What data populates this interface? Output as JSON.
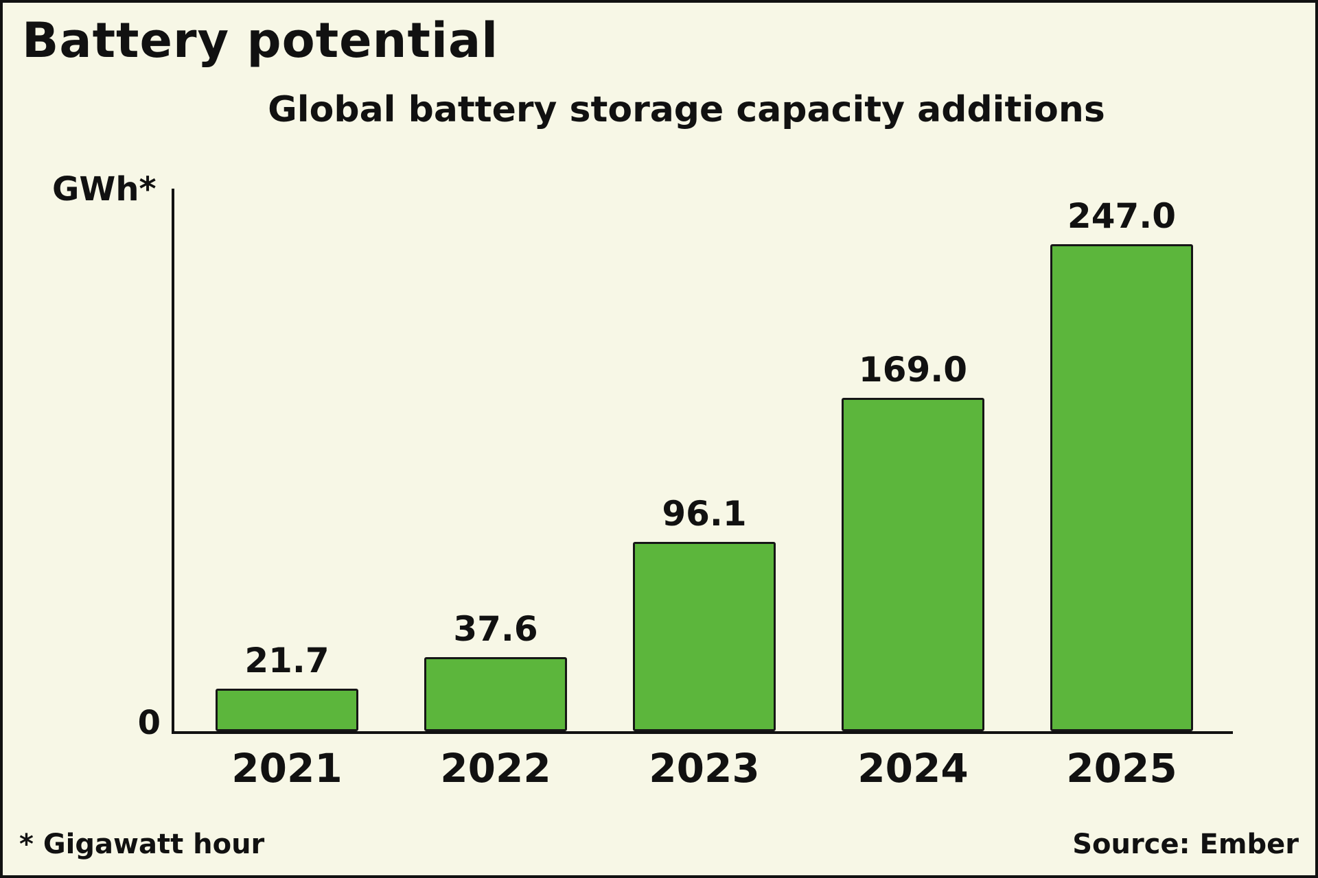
{
  "footnote": "* Gigawatt hour",
  "source": "Source: Ember",
  "colors": {
    "background": "#f7f7e6",
    "bar": "#5cb63c",
    "bar_stroke": "#161616",
    "text": "#111111"
  },
  "chart_data": {
    "type": "bar",
    "title": "Battery potential",
    "subtitle": "Global battery storage capacity additions",
    "ylabel": "GWh*",
    "y_origin_label": "0",
    "categories": [
      "2021",
      "2022",
      "2023",
      "2024",
      "2025"
    ],
    "values": [
      21.7,
      37.6,
      96.1,
      169.0,
      247.0
    ],
    "value_labels": [
      "21.7",
      "37.6",
      "96.1",
      "169.0",
      "247.0"
    ],
    "ylim": [
      0,
      260
    ],
    "grid": false,
    "legend": false,
    "bar_color": "#5cb63c"
  }
}
